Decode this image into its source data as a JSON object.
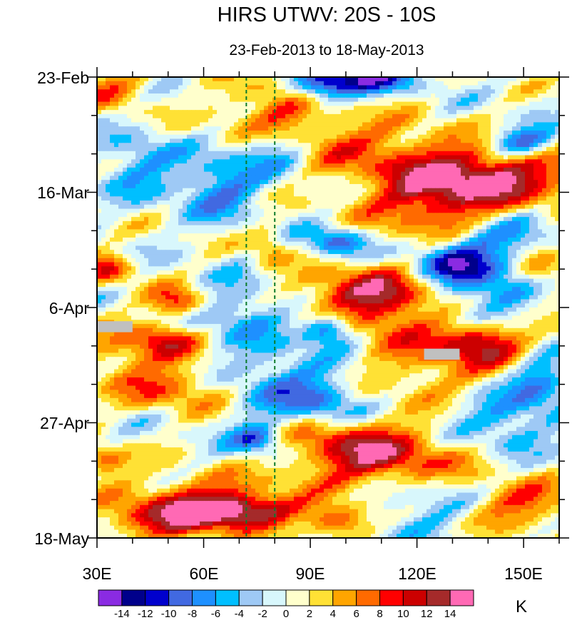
{
  "chart_data": {
    "type": "heatmap",
    "title": "HIRS UTWV: 20S - 10S",
    "subtitle": "23-Feb-2013 to 18-May-2013",
    "x_axis": {
      "range": [
        30,
        160
      ],
      "ticks": [
        30,
        60,
        90,
        120,
        150
      ],
      "tick_labels": [
        "30E",
        "60E",
        "90E",
        "120E",
        "150E"
      ],
      "minor_step": 10
    },
    "y_axis": {
      "range_labels": [
        "23-Feb",
        "18-May"
      ],
      "days_span": 84,
      "ticks_days": [
        0,
        21,
        42,
        63,
        84
      ],
      "tick_labels": [
        "23-Feb",
        "16-Mar",
        "6-Apr",
        "27-Apr",
        "18-May"
      ],
      "minor_step_days": 7
    },
    "reference_lines_lon": [
      72,
      80
    ],
    "colorbar": {
      "unit": "K",
      "labels": [
        "-14",
        "-12",
        "-10",
        "-8",
        "-6",
        "-4",
        "-2",
        "0",
        "2",
        "4",
        "6",
        "8",
        "10",
        "12",
        "14"
      ],
      "levels": [
        -14,
        -12,
        -10,
        -8,
        -6,
        -4,
        -2,
        0,
        2,
        4,
        6,
        8,
        10,
        12,
        14
      ],
      "colors": [
        "#8a2be2",
        "#00008b",
        "#0000cd",
        "#4169e1",
        "#1e90ff",
        "#00bfff",
        "#9ec9f5",
        "#d8f7fc",
        "#ffffcc",
        "#ffe135",
        "#ffa500",
        "#ff6a00",
        "#ff0000",
        "#cc0000",
        "#a52a2a",
        "#ff69b4"
      ]
    },
    "missing_color": "#c0c0c0",
    "features": [
      {
        "lon": 142,
        "day": 18,
        "value": 12,
        "sx": 20,
        "sy": 4
      },
      {
        "lon": 125,
        "day": 23,
        "value": 9,
        "sx": 14,
        "sy": 5
      },
      {
        "lon": 103,
        "day": 39,
        "value": 9,
        "sx": 14,
        "sy": 3
      },
      {
        "lon": 112,
        "day": 42,
        "value": 7,
        "sx": 10,
        "sy": 4
      },
      {
        "lon": 53,
        "day": 41,
        "value": 10,
        "sx": 6,
        "sy": 2
      },
      {
        "lon": 33,
        "day": 35,
        "value": 9,
        "sx": 5,
        "sy": 2
      },
      {
        "lon": 50,
        "day": 48,
        "value": 8,
        "sx": 6,
        "sy": 2
      },
      {
        "lon": 55,
        "day": 57,
        "value": 7,
        "sx": 12,
        "sy": 3
      },
      {
        "lon": 40,
        "day": 51,
        "value": 6,
        "sx": 10,
        "sy": 4
      },
      {
        "lon": 138,
        "day": 48,
        "value": 10,
        "sx": 8,
        "sy": 2.5
      },
      {
        "lon": 126,
        "day": 52,
        "value": 6,
        "sx": 18,
        "sy": 5
      },
      {
        "lon": 112,
        "day": 70,
        "value": 10,
        "sx": 15,
        "sy": 4
      },
      {
        "lon": 98,
        "day": 66,
        "value": 7,
        "sx": 12,
        "sy": 4
      },
      {
        "lon": 70,
        "day": 79,
        "value": 13,
        "sx": 12,
        "sy": 2
      },
      {
        "lon": 50,
        "day": 81,
        "value": 9,
        "sx": 14,
        "sy": 3
      },
      {
        "lon": 98,
        "day": 81,
        "value": 10,
        "sx": 6,
        "sy": 2
      },
      {
        "lon": 60,
        "day": 76,
        "value": 6,
        "sx": 16,
        "sy": 3
      },
      {
        "lon": 34,
        "day": 2,
        "value": 6,
        "sx": 8,
        "sy": 3
      },
      {
        "lon": 80,
        "day": 6,
        "value": 7,
        "sx": 10,
        "sy": 4
      },
      {
        "lon": 100,
        "day": 12,
        "value": 6,
        "sx": 20,
        "sy": 4
      },
      {
        "lon": 78,
        "day": 31,
        "value": 5,
        "sx": 4,
        "sy": 3
      },
      {
        "lon": 32,
        "day": 70,
        "value": 8,
        "sx": 5,
        "sy": 2
      },
      {
        "lon": 150,
        "day": 78,
        "value": 8,
        "sx": 10,
        "sy": 3
      },
      {
        "lon": 155,
        "day": 35,
        "value": 7,
        "sx": 6,
        "sy": 3
      },
      {
        "lon": 105,
        "day": 0,
        "value": -12,
        "sx": 10,
        "sy": 2
      },
      {
        "lon": 93,
        "day": 2,
        "value": -10,
        "sx": 6,
        "sy": 2
      },
      {
        "lon": 150,
        "day": 12,
        "value": -12,
        "sx": 7,
        "sy": 2
      },
      {
        "lon": 80,
        "day": 13,
        "value": -8,
        "sx": 8,
        "sy": 3
      },
      {
        "lon": 42,
        "day": 16,
        "value": -6,
        "sx": 8,
        "sy": 4
      },
      {
        "lon": 65,
        "day": 20,
        "value": -8,
        "sx": 8,
        "sy": 4
      },
      {
        "lon": 97,
        "day": 30,
        "value": -9,
        "sx": 6,
        "sy": 2
      },
      {
        "lon": 130,
        "day": 34,
        "value": -10,
        "sx": 8,
        "sy": 3
      },
      {
        "lon": 145,
        "day": 30,
        "value": -7,
        "sx": 10,
        "sy": 4
      },
      {
        "lon": 95,
        "day": 46,
        "value": -10,
        "sx": 5,
        "sy": 2
      },
      {
        "lon": 82,
        "day": 56,
        "value": -7,
        "sx": 14,
        "sy": 5
      },
      {
        "lon": 70,
        "day": 42,
        "value": -6,
        "sx": 10,
        "sy": 4
      },
      {
        "lon": 75,
        "day": 66,
        "value": -9,
        "sx": 5,
        "sy": 2
      },
      {
        "lon": 145,
        "day": 62,
        "value": -7,
        "sx": 10,
        "sy": 4
      },
      {
        "lon": 140,
        "day": 40,
        "value": -6,
        "sx": 10,
        "sy": 4
      },
      {
        "lon": 155,
        "day": 55,
        "value": -8,
        "sx": 6,
        "sy": 3
      },
      {
        "lon": 120,
        "day": 78,
        "value": -5,
        "sx": 10,
        "sy": 4
      },
      {
        "lon": 95,
        "day": 60,
        "value": -6,
        "sx": 8,
        "sy": 3
      }
    ],
    "missing_regions": [
      {
        "lon_min": 30,
        "lon_max": 40,
        "day_min": 44.5,
        "day_max": 46.5
      },
      {
        "lon_min": 122,
        "lon_max": 132,
        "day_min": 49.5,
        "day_max": 51.5
      }
    ]
  }
}
